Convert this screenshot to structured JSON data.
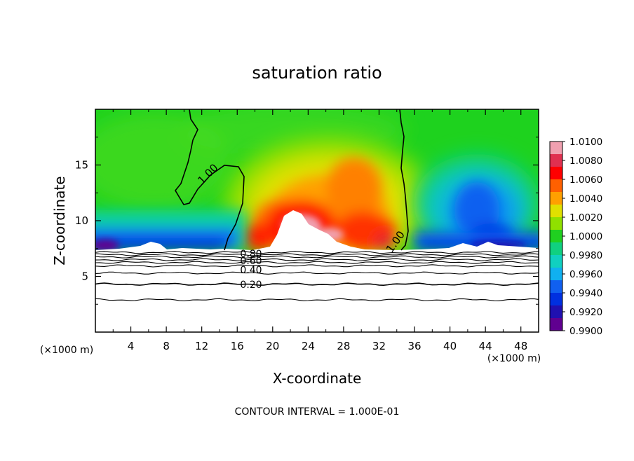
{
  "chart_data": {
    "type": "heatmap",
    "subtype": "filled-contour",
    "title": "saturation ratio",
    "xlabel": "X-coordinate",
    "ylabel": "Z-coordinate",
    "x_unit_note": "(×1000 m)",
    "z_unit_note": "(×1000 m)",
    "footer": "CONTOUR INTERVAL = 1.000E-01",
    "xlim": [
      0,
      50
    ],
    "ylim": [
      0,
      20
    ],
    "x_ticks": [
      4,
      8,
      12,
      16,
      20,
      24,
      28,
      32,
      36,
      40,
      44,
      48
    ],
    "y_ticks": [
      5,
      10,
      15
    ],
    "colorbar": {
      "min": 0.99,
      "max": 1.01,
      "tick_labels": [
        "1.0100",
        "1.0080",
        "1.0060",
        "1.0040",
        "1.0020",
        "1.0000",
        "0.9980",
        "0.9960",
        "0.9940",
        "0.9920",
        "0.9900"
      ],
      "colors": [
        "#f0a0b0",
        "#e03050",
        "#ff0000",
        "#ff6000",
        "#ffa000",
        "#e0e000",
        "#90e000",
        "#20d020",
        "#10d080",
        "#10d0c0",
        "#10b0f0",
        "#1060f0",
        "#0030e0",
        "#2010b0",
        "#600090"
      ]
    },
    "contour_labels": [
      {
        "value": "1.00",
        "note": "left upper contour"
      },
      {
        "value": "1.00",
        "note": "right contour"
      },
      {
        "value": "0.80"
      },
      {
        "value": "0.60"
      },
      {
        "value": "0.40"
      },
      {
        "value": "0.20"
      }
    ],
    "lower_contour_levels": [
      0.1,
      0.2,
      0.3,
      0.4,
      0.5,
      0.6,
      0.7,
      0.8,
      0.9
    ],
    "field_description": "supersaturation region (>1.0) centered near x=20-32 between z=7.3 and z=16; sub-saturation (<1.0) near x=0-8 and x=36-50 just above cloud base ~7.3"
  }
}
